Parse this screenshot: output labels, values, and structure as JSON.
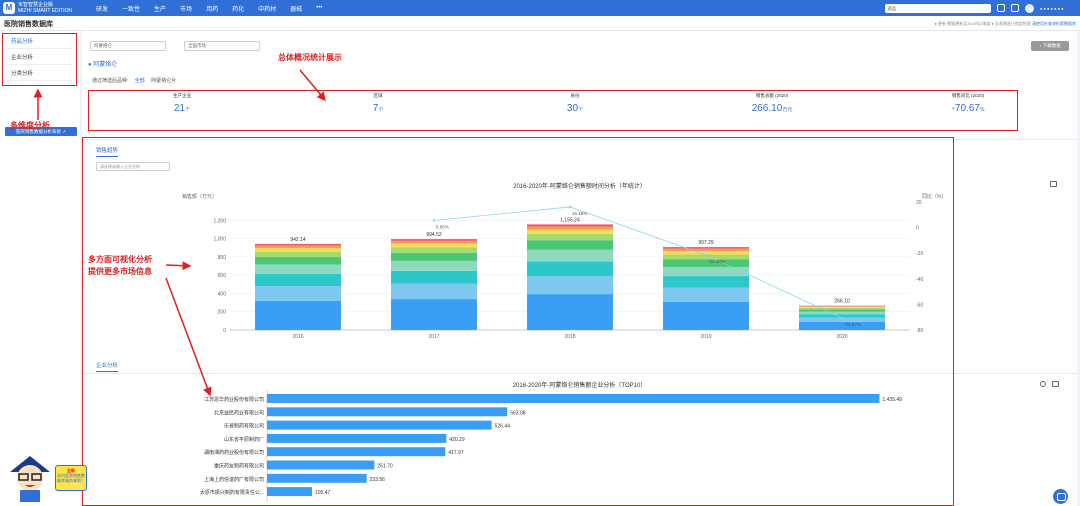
{
  "topbar": {
    "logo_mark": "M",
    "logo_name": "米智智慧企业版",
    "logo_sub": "MIZHI SMART EDITION",
    "nav": [
      "研发",
      "一致性",
      "生产",
      "市场",
      "用药",
      "药化",
      "中药材",
      "器械",
      "•••"
    ],
    "search_value": "药品",
    "user_text": "● ● ● ● ● ● ●"
  },
  "subbar": {
    "db_title": "医院销售数据库",
    "notice": "● 更新   数据更新至2020年2季度   ● 全表筛选已锁定检索   ",
    "notice_link": "请使用在查询检索数据库"
  },
  "sidebar": {
    "items": [
      "药品分析",
      "企业分析",
      "分类分析"
    ],
    "hospital_button": "医院销售数据分析系统 ↗"
  },
  "filters": {
    "drug_select": "阿蒙络仑",
    "scope_select": "全国市场",
    "download": "↓ 下载数据"
  },
  "drug_name": "阿蒙络仑",
  "dimension": {
    "label": "通过筛选后品种:",
    "options": [
      "全部",
      "阿蒙络仑片"
    ]
  },
  "stats": [
    {
      "label": "生产企业",
      "value": "21",
      "unit": "个"
    },
    {
      "label": "区域",
      "value": "7",
      "unit": "个"
    },
    {
      "label": "省份",
      "value": "30",
      "unit": "个"
    },
    {
      "label": "销售总额 (2020)",
      "value": "266.10",
      "unit": "万元"
    },
    {
      "label": "销售同比 (2020)",
      "value": "-70.67",
      "unit": "%"
    }
  ],
  "tabs": {
    "trend": "销售趋势",
    "enterprise": "企业分析"
  },
  "enterprise_select_placeholder": "请选择或输入企业名称",
  "chart1": {
    "title": "2016-2020年-阿蒙络仑销售额时间分析（年统计）",
    "ylabel_left": "销售额（万元）",
    "ylabel_right": "同比（%）"
  },
  "chart2": {
    "title": "2016-2020年-阿蒙络仑销售额企业分析（TOP10）"
  },
  "annotations": {
    "sidebar": "多维度分析",
    "stats": "总体概况统计展示",
    "charts_line1": "多方面可视化分析",
    "charts_line2": "提供更多市场信息"
  },
  "mascot": {
    "title": "全新",
    "line1": "米内医院销售数",
    "line2": "据库服务来啦！"
  },
  "colors": {
    "primary": "#2f6fd6",
    "annotation": "#e02020"
  },
  "chart_data": [
    {
      "type": "bar",
      "title": "2016-2020年-阿蒙络仑销售额时间分析（年统计）",
      "ylabel": "销售额（万元）",
      "y2label": "同比（%）",
      "categories": [
        "2016",
        "2017",
        "2018",
        "2019",
        "2020"
      ],
      "totals": [
        942.14,
        994.52,
        1155.24,
        907.29,
        266.1
      ],
      "total_labels": [
        "942.14",
        "994.52",
        "1,155.24",
        "907.29",
        "266.10"
      ],
      "stack_fractions": [
        0.34,
        0.17,
        0.14,
        0.11,
        0.09,
        0.06,
        0.04,
        0.03,
        0.02
      ],
      "stack_colors": [
        "#3a9ef5",
        "#7ec8f0",
        "#2ec7c9",
        "#8fd9c0",
        "#4bc675",
        "#a6db6b",
        "#f7dc5a",
        "#fb9a5e",
        "#ef5c6c"
      ],
      "yoy": [
        null,
        5.56,
        16.16,
        -21.46,
        -70.67
      ],
      "yoy_labels": [
        "",
        "5.56%",
        "16.16%",
        "-21.46%",
        "-70.67%"
      ],
      "ylim": [
        0,
        1400
      ],
      "yticks": [
        0,
        200,
        400,
        600,
        800,
        "1,000",
        "1,200"
      ],
      "y2lim": [
        -80,
        20
      ],
      "y2ticks": [
        20,
        0,
        -20,
        -40,
        -60,
        -80
      ]
    },
    {
      "type": "bar",
      "orientation": "horizontal",
      "title": "2016-2020年-阿蒙络仑销售额企业分析（TOP10）",
      "categories": [
        "江苏恩华药业股份有限公司",
        "北京益民药业有限公司",
        "乐普制药有限公司",
        "山东省平原制药厂",
        "湖南湘药药业股份有限公司",
        "重庆药友制药有限公司",
        "上海上药信谊药厂有限公司",
        "太原市振兴制药有限责任公..."
      ],
      "values": [
        1435.49,
        563.08,
        526.44,
        420.29,
        417.97,
        251.7,
        233.56,
        105.47
      ],
      "value_labels": [
        "1,435.49",
        "563.08",
        "526.44",
        "420.29",
        "417.97",
        "251.70",
        "233.56",
        "105.47"
      ],
      "color": "#3a9ef5"
    }
  ]
}
